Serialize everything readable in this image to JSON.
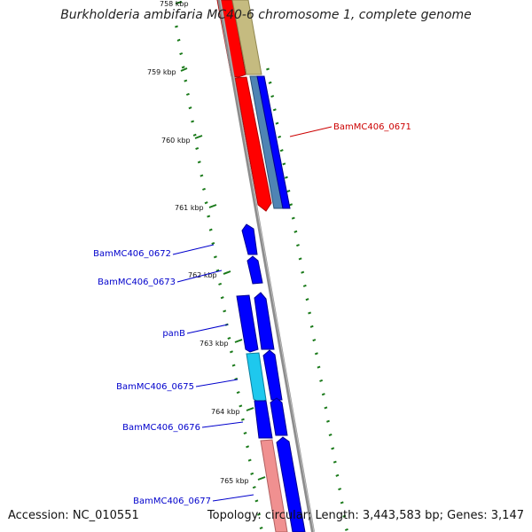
{
  "title": "Burkholderia ambifaria MC40-6 chromosome 1, complete genome",
  "footer": {
    "accession": "Accession: NC_010551",
    "topology": "Topology: circular; Length: 3,443,583 bp; Genes: 3,147"
  },
  "colors": {
    "backbone": "#8c8c8c",
    "tick": "#1a7a1a",
    "gene_label": "#0000cc",
    "highlight_label": "#cc0000",
    "red": "#ff0000",
    "salmon": "#f09090",
    "blue": "#0000ff",
    "cyan": "#1ec8ee",
    "steelblue": "#4f84b4",
    "olive": "#c5bb80"
  },
  "kbp_ticks": [
    "758 kbp",
    "759 kbp",
    "760 kbp",
    "761 kbp",
    "762 kbp",
    "763 kbp",
    "764 kbp",
    "765 kbp"
  ],
  "genes": [
    {
      "label": "BamMC406_0671",
      "highlighted": true
    },
    {
      "label": "BamMC406_0672",
      "highlighted": false
    },
    {
      "label": "BamMC406_0673",
      "highlighted": false
    },
    {
      "label": "panB",
      "highlighted": false
    },
    {
      "label": "BamMC406_0675",
      "highlighted": false
    },
    {
      "label": "BamMC406_0676",
      "highlighted": false
    },
    {
      "label": "BamMC406_0677",
      "highlighted": false
    }
  ]
}
